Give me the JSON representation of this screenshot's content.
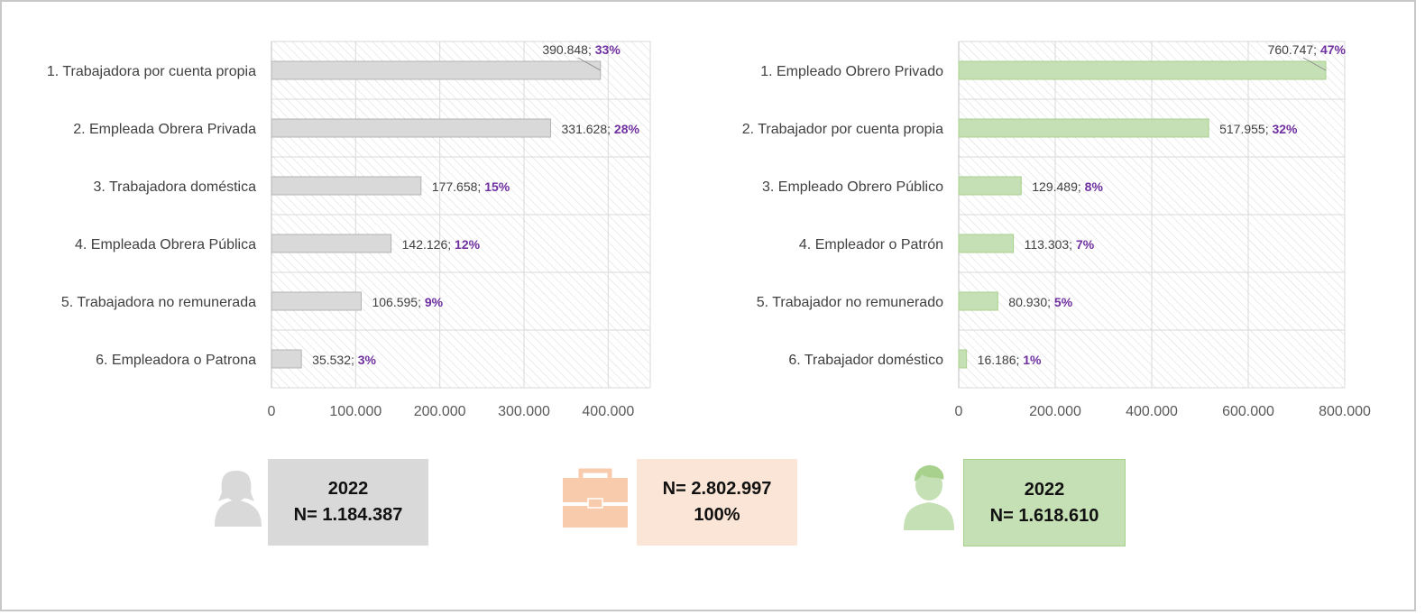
{
  "colors": {
    "female_bar": "#d9d9d9",
    "female_bar_stroke": "#b3b3b3",
    "male_bar": "#c5e0b4",
    "male_bar_stroke": "#a9d18e",
    "total_box": "#fbe5d6",
    "total_icon": "#f8cbad",
    "percent_text": "#7030a0",
    "value_text": "#404040",
    "grid": "#d9d9d9"
  },
  "chart_data": [
    {
      "type": "bar",
      "orientation": "horizontal",
      "categories": [
        "1. Trabajadora por cuenta propia",
        "2. Empleada Obrera Privada",
        "3. Trabajadora doméstica",
        "4. Empleada Obrera Pública",
        "5. Trabajadora no remunerada",
        "6. Empleadora o Patrona"
      ],
      "values": [
        390848,
        331628,
        177658,
        142126,
        106595,
        35532
      ],
      "value_labels": [
        "390.848",
        "331.628",
        "177.658",
        "142.126",
        "106.595",
        "35.532"
      ],
      "percent_labels": [
        "33%",
        "28%",
        "15%",
        "12%",
        "9%",
        "3%"
      ],
      "xlim": [
        0,
        450000
      ],
      "x_ticks": [
        0,
        100000,
        200000,
        300000,
        400000
      ],
      "x_tick_labels": [
        "0",
        "100.000",
        "200.000",
        "300.000",
        "400.000"
      ],
      "grid": true
    },
    {
      "type": "bar",
      "orientation": "horizontal",
      "categories": [
        "1. Empleado Obrero Privado",
        "2. Trabajador por cuenta propia",
        "3. Empleado Obrero Público",
        "4. Empleador o Patrón",
        "5. Trabajador no remunerado",
        "6. Trabajador doméstico"
      ],
      "values": [
        760747,
        517955,
        129489,
        113303,
        80930,
        16186
      ],
      "value_labels": [
        "760.747",
        "517.955",
        "129.489",
        "113.303",
        "80.930",
        "16.186"
      ],
      "percent_labels": [
        "47%",
        "32%",
        "8%",
        "7%",
        "5%",
        "1%"
      ],
      "xlim": [
        0,
        800000
      ],
      "x_ticks": [
        0,
        200000,
        400000,
        600000,
        800000
      ],
      "x_tick_labels": [
        "0",
        "200.000",
        "400.000",
        "600.000",
        "800.000"
      ],
      "grid": true
    }
  ],
  "summary": {
    "female": {
      "icon": "woman-icon",
      "line1": "2022",
      "line2": "N= 1.184.387"
    },
    "total": {
      "icon": "briefcase-icon",
      "line1": "N= 2.802.997",
      "line2": "100%"
    },
    "male": {
      "icon": "man-icon",
      "line1": "2022",
      "line2": "N= 1.618.610"
    }
  }
}
